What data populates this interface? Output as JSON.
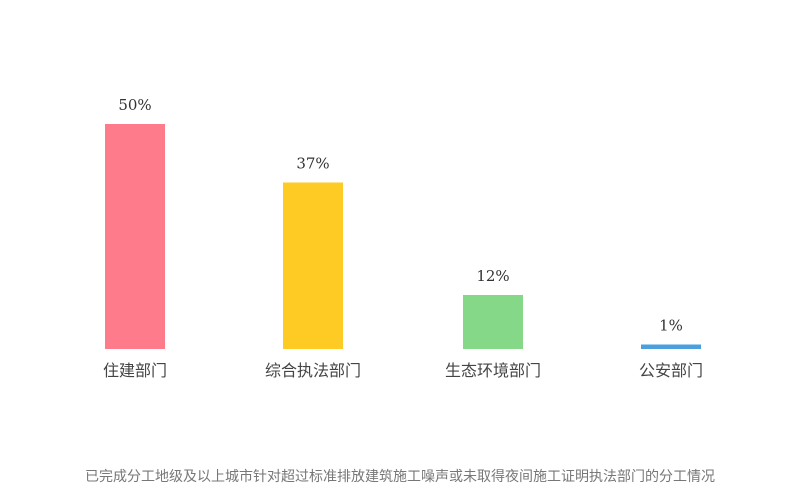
{
  "chart_data": {
    "type": "bar",
    "categories": [
      "住建部门",
      "综合执法部门",
      "生态环境部门",
      "公安部门"
    ],
    "values": [
      50,
      37,
      12,
      1
    ],
    "value_labels": [
      "50%",
      "37%",
      "12%",
      "1%"
    ],
    "colors": [
      "#fd7b8b",
      "#fdcb24",
      "#85d888",
      "#4a9fdc"
    ],
    "ylim": [
      0,
      50
    ],
    "grid": false,
    "caption": "已完成分工地级及以上城市针对超过标准排放建筑施工噪声或未取得夜间施工证明执法部门的分工情况"
  }
}
